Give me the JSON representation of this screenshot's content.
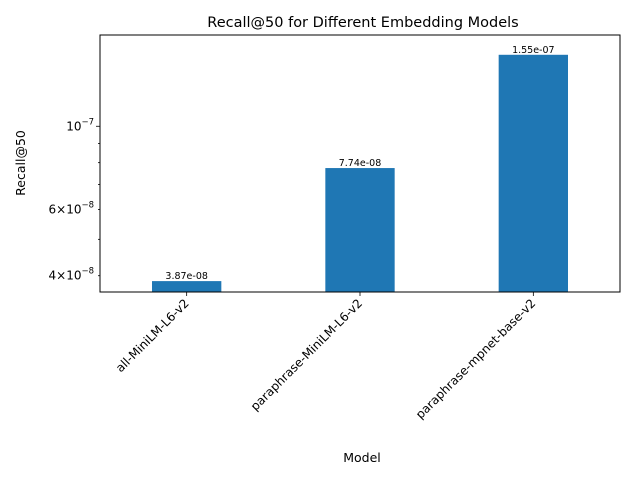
{
  "chart_data": {
    "type": "bar",
    "title": "Recall@50 for Different Embedding Models",
    "xlabel": "Model",
    "ylabel": "Recall@50",
    "yscale": "log",
    "ylim": [
      3.62e-08,
      1.75e-07
    ],
    "categories": [
      "all-MiniLM-L6-v2",
      "paraphrase-MiniLM-L6-v2",
      "paraphrase-mpnet-base-v2"
    ],
    "values": [
      3.87e-08,
      7.74e-08,
      1.55e-07
    ],
    "data_labels": [
      "3.87e-08",
      "7.74e-08",
      "1.55e-07"
    ],
    "y_major_ticks": [
      {
        "value": 1e-07,
        "mantissa": "",
        "base": "10",
        "exp": "−7"
      }
    ],
    "y_minor_ticks": [
      {
        "value": 4e-08,
        "mantissa": "4",
        "base": "10",
        "exp": "−8"
      },
      {
        "value": 5e-08,
        "mantissa": "",
        "base": "",
        "exp": ""
      },
      {
        "value": 6e-08,
        "mantissa": "6",
        "base": "10",
        "exp": "−8"
      },
      {
        "value": 7e-08,
        "mantissa": "",
        "base": "",
        "exp": ""
      },
      {
        "value": 8e-08,
        "mantissa": "",
        "base": "",
        "exp": ""
      },
      {
        "value": 9e-08,
        "mantissa": "",
        "base": "",
        "exp": ""
      }
    ],
    "bar_color": "#1f77b4",
    "grid": false,
    "legend": "none"
  }
}
